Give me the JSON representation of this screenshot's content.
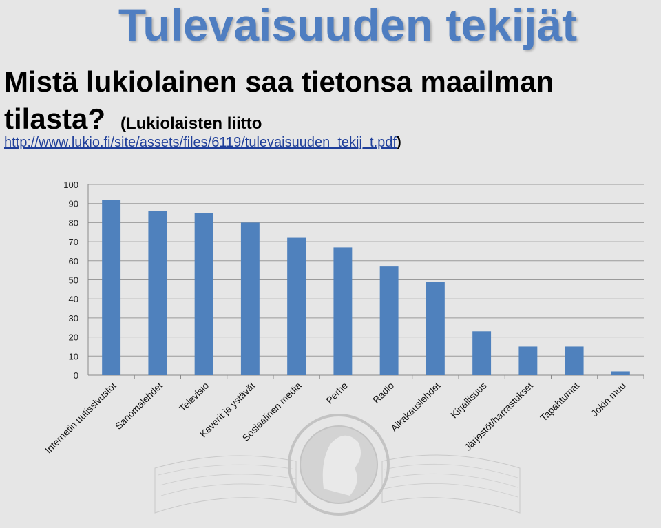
{
  "header": {
    "title": "Tulevaisuuden tekijät",
    "question_line1": "Mistä lukiolainen saa tietonsa maailman",
    "question_line2": "tilasta?",
    "source_prefix": "(Lukiolaisten liitto",
    "source_url": "http://www.lukio.fi/site/assets/files/6119/tulevaisuuden_tekij_t.pdf",
    "source_suffix": ")"
  },
  "colors": {
    "title": "#4f7ec1",
    "bar": "#4f81bd",
    "background": "#e6e6e6"
  },
  "chart_data": {
    "type": "bar",
    "categories": [
      "Internetin uutissivustot",
      "Sanomalehdet",
      "Televisio",
      "Kaverit ja ystävät",
      "Sosiaalinen media",
      "Perhe",
      "Radio",
      "Aikakauslehdet",
      "Kirjallisuus",
      "Järjestöt/harrastukset",
      "Tapahtumat",
      "Jokin muu"
    ],
    "values": [
      92,
      86,
      85,
      80,
      72,
      67,
      57,
      49,
      23,
      15,
      15,
      2
    ],
    "yticks": [
      0,
      10,
      20,
      30,
      40,
      50,
      60,
      70,
      80,
      90,
      100
    ],
    "ylim": [
      0,
      100
    ],
    "grid": true,
    "legend": "none"
  }
}
